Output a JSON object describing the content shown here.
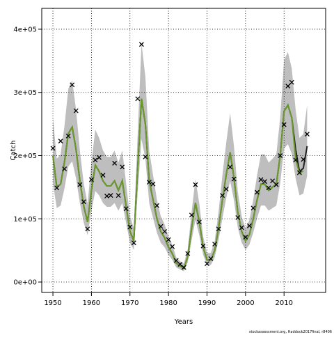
{
  "chart_data": {
    "type": "line",
    "x_label": "Years",
    "y_label": "Catch",
    "caption": "stockassessment.org, Haddock2017final, r8406",
    "xlim": [
      1947.1,
      2020.8
    ],
    "ylim": [
      -16500,
      433000
    ],
    "xticks": [
      1950,
      1960,
      1970,
      1980,
      1990,
      2000,
      2010
    ],
    "yticks": [
      {
        "value": 0,
        "label": "0e+00"
      },
      {
        "value": 100000,
        "label": "1e+05"
      },
      {
        "value": 200000,
        "label": "2e+05"
      },
      {
        "value": 300000,
        "label": "3e+05"
      },
      {
        "value": 400000,
        "label": "4e+05"
      }
    ],
    "grid": true,
    "x": [
      1950,
      1951,
      1952,
      1953,
      1954,
      1955,
      1956,
      1957,
      1958,
      1959,
      1960,
      1961,
      1962,
      1963,
      1964,
      1965,
      1966,
      1967,
      1968,
      1969,
      1970,
      1971,
      1972,
      1973,
      1974,
      1975,
      1976,
      1977,
      1978,
      1979,
      1980,
      1981,
      1982,
      1983,
      1984,
      1985,
      1986,
      1987,
      1988,
      1989,
      1990,
      1991,
      1992,
      1993,
      1994,
      1995,
      1996,
      1997,
      1998,
      1999,
      2000,
      2001,
      2002,
      2003,
      2004,
      2005,
      2006,
      2007,
      2008,
      2009,
      2010,
      2011,
      2012,
      2013,
      2014,
      2015,
      2016
    ],
    "band": {
      "color": "#bebebe",
      "lower": [
        156000,
        117000,
        121000,
        148000,
        183000,
        191000,
        164000,
        125000,
        94000,
        74000,
        113000,
        144000,
        137000,
        125000,
        119000,
        119000,
        125000,
        113000,
        125000,
        94000,
        62000,
        51000,
        140000,
        226000,
        195000,
        125000,
        101000,
        78000,
        62000,
        55000,
        43000,
        35000,
        23000,
        20000,
        17000,
        31000,
        66000,
        98000,
        74000,
        43000,
        27000,
        27000,
        39000,
        66000,
        101000,
        133000,
        160000,
        129000,
        86000,
        62000,
        51000,
        59000,
        78000,
        101000,
        121000,
        121000,
        113000,
        117000,
        121000,
        156000,
        211000,
        218000,
        203000,
        164000,
        137000,
        140000,
        168000
      ],
      "upper": [
        260000,
        195000,
        202000,
        247000,
        306000,
        319000,
        273000,
        208000,
        156000,
        124000,
        189000,
        241000,
        228000,
        208000,
        198000,
        198000,
        208000,
        189000,
        208000,
        156000,
        104000,
        85000,
        234000,
        377000,
        325000,
        208000,
        169000,
        130000,
        104000,
        91000,
        72000,
        59000,
        39000,
        33000,
        29000,
        52000,
        111000,
        163000,
        124000,
        72000,
        46000,
        46000,
        65000,
        111000,
        169000,
        221000,
        267000,
        215000,
        143000,
        104000,
        85000,
        98000,
        130000,
        169000,
        202000,
        202000,
        189000,
        195000,
        202000,
        260000,
        351000,
        364000,
        338000,
        273000,
        228000,
        234000,
        280000
      ]
    },
    "series": [
      {
        "color": "#222222",
        "values": [
          200000,
          150000,
          155000,
          190000,
          235000,
          245000,
          210000,
          160000,
          120000,
          95000,
          145000,
          185000,
          175000,
          160000,
          152000,
          152000,
          160000,
          145000,
          160000,
          120000,
          80000,
          65000,
          180000,
          290000,
          250000,
          160000,
          130000,
          100000,
          80000,
          70000,
          55000,
          45000,
          30000,
          25000,
          22000,
          40000,
          85000,
          125000,
          95000,
          55000,
          35000,
          35000,
          50000,
          85000,
          130000,
          170000,
          205000,
          165000,
          110000,
          80000,
          65000,
          75000,
          100000,
          130000,
          155000,
          155000,
          145000,
          150000,
          155000,
          200000,
          270000,
          280000,
          260000,
          210000,
          175000,
          180000,
          215000
        ]
      },
      {
        "color": "#6a9a2a",
        "values": [
          200000,
          150000,
          155000,
          190000,
          235000,
          245000,
          210000,
          160000,
          120000,
          95000,
          145000,
          185000,
          175000,
          160000,
          152000,
          152000,
          160000,
          145000,
          160000,
          120000,
          80000,
          65000,
          180000,
          290000,
          250000,
          160000,
          130000,
          100000,
          80000,
          70000,
          55000,
          45000,
          30000,
          25000,
          22000,
          40000,
          85000,
          125000,
          95000,
          55000,
          35000,
          35000,
          50000,
          85000,
          130000,
          170000,
          205000,
          165000,
          110000,
          80000,
          65000,
          75000,
          100000,
          130000,
          155000,
          155000,
          145000,
          150000,
          155000,
          200000,
          270000,
          280000,
          260000,
          195000,
          172000,
          176000,
          null
        ]
      }
    ],
    "points": {
      "color": "#000000",
      "values": [
        211600,
        149000,
        223000,
        179000,
        231000,
        312000,
        271000,
        154000,
        127000,
        84000,
        162000,
        193000,
        197000,
        169000,
        136000,
        137000,
        188000,
        137000,
        182000,
        116000,
        87000,
        62000,
        290000,
        376000,
        198000,
        158000,
        155000,
        121000,
        88000,
        80000,
        67000,
        56000,
        34000,
        28000,
        23000,
        45000,
        106000,
        154000,
        95000,
        57000,
        29000,
        37000,
        60000,
        84000,
        137000,
        147000,
        182000,
        163000,
        102000,
        86000,
        71000,
        89000,
        117000,
        142000,
        162000,
        159000,
        149000,
        160000,
        154000,
        200000,
        249000,
        310000,
        316000,
        193000,
        173000,
        194000,
        234000
      ]
    }
  }
}
